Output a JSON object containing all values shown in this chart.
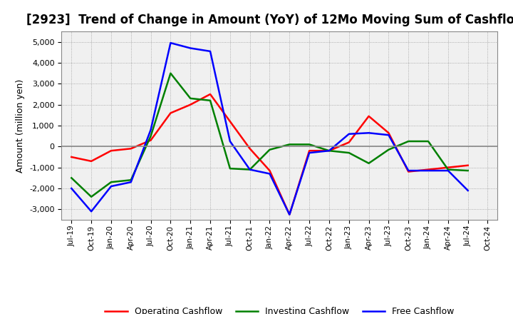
{
  "title": "[2923]  Trend of Change in Amount (YoY) of 12Mo Moving Sum of Cashflows",
  "ylabel": "Amount (million yen)",
  "x_labels": [
    "Jul-19",
    "Oct-19",
    "Jan-20",
    "Apr-20",
    "Jul-20",
    "Oct-20",
    "Jan-21",
    "Apr-21",
    "Jul-21",
    "Oct-21",
    "Jan-22",
    "Apr-22",
    "Jul-22",
    "Oct-22",
    "Jan-23",
    "Apr-23",
    "Jul-23",
    "Oct-23",
    "Jan-24",
    "Apr-24",
    "Jul-24",
    "Oct-24"
  ],
  "operating": [
    -500,
    -700,
    -200,
    -100,
    300,
    1600,
    2000,
    2500,
    1200,
    -100,
    -1150,
    -3250,
    -200,
    -200,
    200,
    1450,
    650,
    -1200,
    -1100,
    -1000,
    -900,
    null
  ],
  "investing": [
    -1500,
    -2400,
    -1700,
    -1600,
    500,
    3500,
    2300,
    2200,
    -1050,
    -1100,
    -150,
    100,
    100,
    -200,
    -300,
    -800,
    -150,
    250,
    250,
    -1100,
    -1150,
    null
  ],
  "free": [
    -2000,
    -3100,
    -1900,
    -1700,
    800,
    4950,
    4700,
    4550,
    250,
    -1100,
    -1300,
    -3250,
    -300,
    -200,
    600,
    650,
    550,
    -1150,
    -1150,
    -1150,
    -2100,
    null
  ],
  "operating_color": "#ff0000",
  "investing_color": "#008000",
  "free_color": "#0000ff",
  "ylim": [
    -3500,
    5500
  ],
  "yticks": [
    -3000,
    -2000,
    -1000,
    0,
    1000,
    2000,
    3000,
    4000,
    5000
  ],
  "background_color": "#ffffff",
  "grid_color": "#999999",
  "title_fontsize": 12,
  "axis_bg_color": "#f0f0f0",
  "legend_labels": [
    "Operating Cashflow",
    "Investing Cashflow",
    "Free Cashflow"
  ]
}
